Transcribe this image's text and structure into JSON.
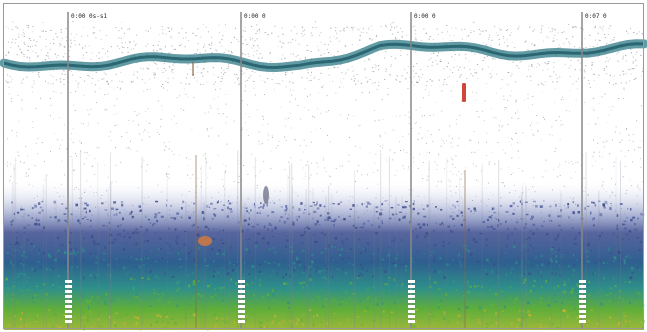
{
  "echogram": {
    "colors": {
      "background": "#ffffff",
      "frame": "#9a9a9a",
      "surface_band": "#2f7a86",
      "noise_dots": "#8a8f99",
      "bottom_blue": "#3a4a8c",
      "bottom_teal": "#2e8f8a",
      "bottom_green": "#5fae3a",
      "bottom_yellow": "#c9b233",
      "highlight_red": "#d0463a",
      "highlight_orange": "#d97a3a",
      "marker_line": "#888888"
    },
    "markers": [
      {
        "id": "m1",
        "label": "0:00 0s-s1"
      },
      {
        "id": "m2",
        "label": "0:00 0"
      },
      {
        "id": "m3",
        "label": "0:00 0"
      },
      {
        "id": "m4",
        "label": "0:07 0"
      }
    ]
  }
}
